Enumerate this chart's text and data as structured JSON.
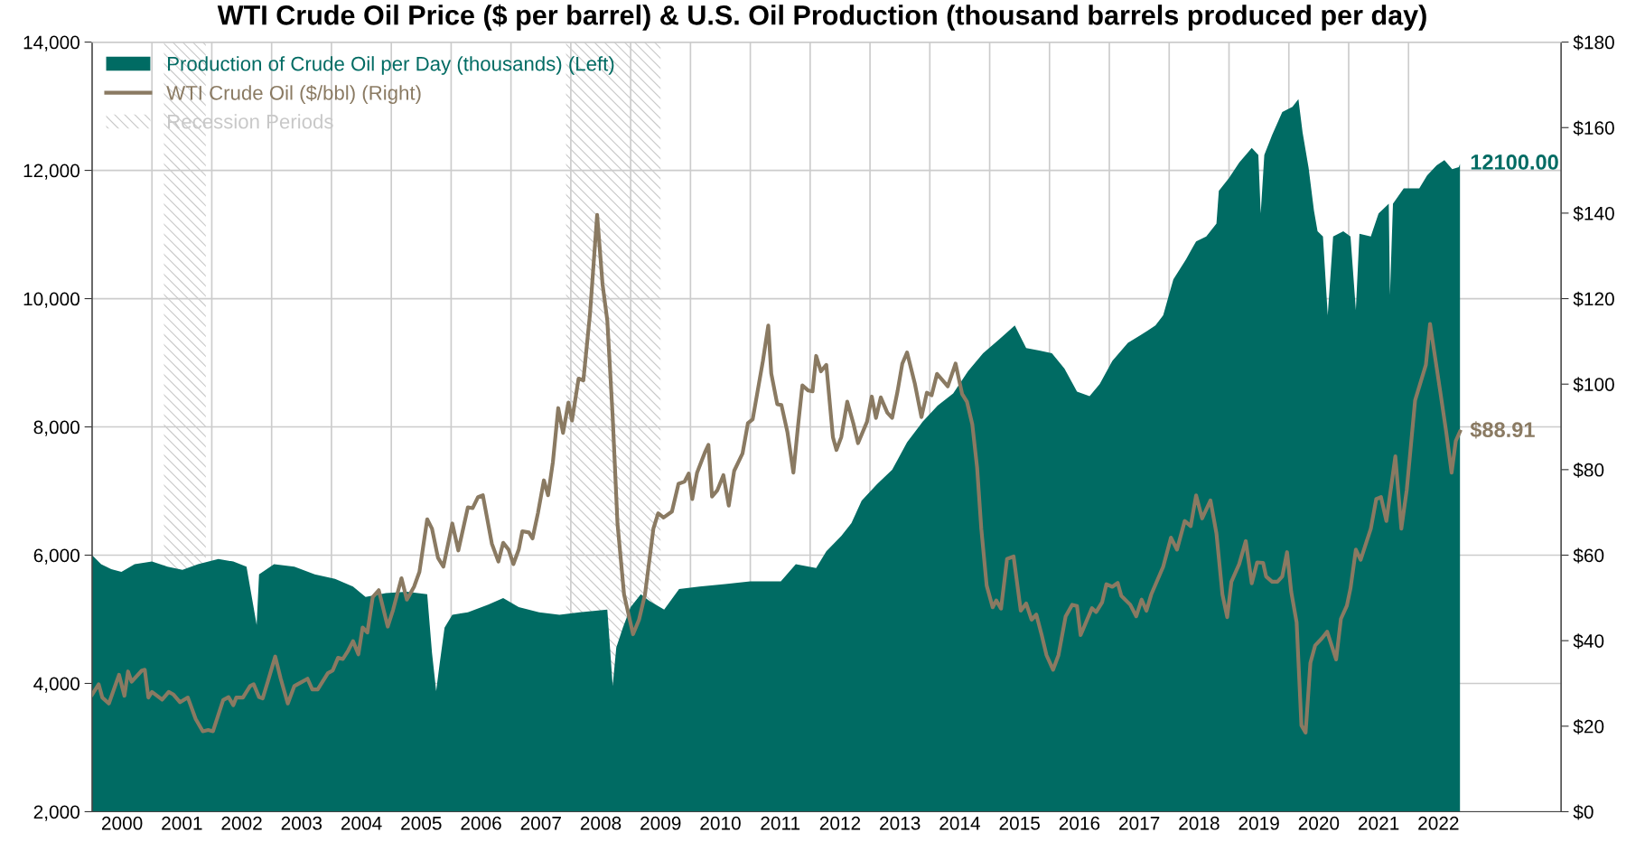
{
  "chart_data": {
    "type": "area",
    "title": "WTI Crude Oil Price ($ per barrel) & U.S. Oil Production (thousand barrels produced per day)",
    "xlim": [
      2000,
      2024.55
    ],
    "xticks": [
      {
        "value": 2000.5,
        "label": "2000"
      },
      {
        "value": 2001.5,
        "label": "2001"
      },
      {
        "value": 2002.5,
        "label": "2002"
      },
      {
        "value": 2003.5,
        "label": "2003"
      },
      {
        "value": 2004.5,
        "label": "2004"
      },
      {
        "value": 2005.5,
        "label": "2005"
      },
      {
        "value": 2006.5,
        "label": "2006"
      },
      {
        "value": 2007.5,
        "label": "2007"
      },
      {
        "value": 2008.5,
        "label": "2008"
      },
      {
        "value": 2009.5,
        "label": "2009"
      },
      {
        "value": 2010.5,
        "label": "2010"
      },
      {
        "value": 2011.5,
        "label": "2011"
      },
      {
        "value": 2012.5,
        "label": "2012"
      },
      {
        "value": 2013.5,
        "label": "2013"
      },
      {
        "value": 2014.5,
        "label": "2014"
      },
      {
        "value": 2015.5,
        "label": "2015"
      },
      {
        "value": 2016.5,
        "label": "2016"
      },
      {
        "value": 2017.5,
        "label": "2017"
      },
      {
        "value": 2018.5,
        "label": "2018"
      },
      {
        "value": 2019.5,
        "label": "2019"
      },
      {
        "value": 2020.5,
        "label": "2020"
      },
      {
        "value": 2021.5,
        "label": "2021"
      },
      {
        "value": 2022.5,
        "label": "2022"
      },
      {
        "value": 2001,
        "label": null
      },
      {
        "value": 2002,
        "label": null
      },
      {
        "value": 2003,
        "label": null
      },
      {
        "value": 2004,
        "label": null
      },
      {
        "value": 2005,
        "label": null
      },
      {
        "value": 2006,
        "label": null
      },
      {
        "value": 2007,
        "label": null
      },
      {
        "value": 2008,
        "label": null
      },
      {
        "value": 2009,
        "label": null
      },
      {
        "value": 2010,
        "label": null
      },
      {
        "value": 2011,
        "label": null
      },
      {
        "value": 2012,
        "label": null
      },
      {
        "value": 2013,
        "label": null
      },
      {
        "value": 2014,
        "label": null
      },
      {
        "value": 2015,
        "label": null
      },
      {
        "value": 2016,
        "label": null
      },
      {
        "value": 2017,
        "label": null
      },
      {
        "value": 2018,
        "label": null
      },
      {
        "value": 2019,
        "label": null
      },
      {
        "value": 2020,
        "label": null
      },
      {
        "value": 2021,
        "label": null
      },
      {
        "value": 2022,
        "label": null
      }
    ],
    "ylim": [
      2000,
      14000
    ],
    "yticks": [
      {
        "value": 2000,
        "label": "2,000"
      },
      {
        "value": 4000,
        "label": "4,000"
      },
      {
        "value": 6000,
        "label": "6,000"
      },
      {
        "value": 8000,
        "label": "8,000"
      },
      {
        "value": 10000,
        "label": "10,000"
      },
      {
        "value": 12000,
        "label": "12,000"
      },
      {
        "value": 14000,
        "label": "14,000"
      }
    ],
    "y2lim": [
      0,
      180
    ],
    "y2ticks": [
      {
        "value": 0,
        "label": "$0"
      },
      {
        "value": 20,
        "label": "$20"
      },
      {
        "value": 40,
        "label": "$40"
      },
      {
        "value": 60,
        "label": "$60"
      },
      {
        "value": 80,
        "label": "$80"
      },
      {
        "value": 100,
        "label": "$100"
      },
      {
        "value": 120,
        "label": "$120"
      },
      {
        "value": 140,
        "label": "$140"
      },
      {
        "value": 160,
        "label": "$160"
      },
      {
        "value": 180,
        "label": "$180"
      }
    ],
    "grid": true,
    "legend": "top left",
    "bands": [
      {
        "axis": "x",
        "from": 2001.2,
        "to": 2001.9,
        "label": "Recession Periods",
        "color": "#c8c8c8"
      },
      {
        "axis": "x",
        "from": 2007.92,
        "to": 2009.5,
        "color": "#c8c8c8"
      }
    ],
    "series": [
      {
        "name": "Production of Crude Oil per Day (thousands) (Left)",
        "color": "#006b63",
        "x": [
          2000.0,
          2000.15,
          2000.32,
          2000.49,
          2000.71,
          2001.0,
          2001.26,
          2001.51,
          2001.77,
          2002.11,
          2002.36,
          2002.58,
          2002.75,
          2002.79,
          2003.04,
          2003.38,
          2003.72,
          2004.06,
          2004.36,
          2004.57,
          2004.91,
          2005.26,
          2005.6,
          2005.68,
          2005.75,
          2005.81,
          2005.89,
          2006.02,
          2006.28,
          2006.62,
          2006.87,
          2007.13,
          2007.47,
          2007.81,
          2008.15,
          2008.61,
          2008.7,
          2008.76,
          2008.87,
          2009.0,
          2009.17,
          2009.31,
          2009.56,
          2009.81,
          2010.15,
          2010.58,
          2011.0,
          2011.51,
          2011.76,
          2012.1,
          2012.27,
          2012.52,
          2012.69,
          2012.86,
          2013.12,
          2013.37,
          2013.62,
          2013.88,
          2014.13,
          2014.39,
          2014.64,
          2014.89,
          2015.14,
          2015.42,
          2015.61,
          2015.83,
          2016.04,
          2016.25,
          2016.46,
          2016.67,
          2016.84,
          2017.05,
          2017.31,
          2017.52,
          2017.77,
          2017.9,
          2018.07,
          2018.28,
          2018.4,
          2018.45,
          2018.62,
          2018.79,
          2018.83,
          2019.0,
          2019.17,
          2019.38,
          2019.49,
          2019.53,
          2019.59,
          2019.72,
          2019.89,
          2020.06,
          2020.16,
          2020.23,
          2020.33,
          2020.42,
          2020.48,
          2020.57,
          2020.65,
          2020.74,
          2020.91,
          2021.03,
          2021.12,
          2021.18,
          2021.37,
          2021.5,
          2021.67,
          2021.69,
          2021.74,
          2021.92,
          2022.18,
          2022.31,
          2022.47,
          2022.6,
          2022.73,
          2022.84,
          2022.86
        ],
        "values": [
          6000,
          5860,
          5780,
          5740,
          5860,
          5900,
          5820,
          5770,
          5860,
          5940,
          5900,
          5820,
          4910,
          5700,
          5860,
          5820,
          5700,
          5630,
          5510,
          5350,
          5410,
          5430,
          5390,
          4480,
          3880,
          4320,
          4870,
          5070,
          5110,
          5230,
          5330,
          5190,
          5110,
          5070,
          5110,
          5150,
          3960,
          4560,
          4870,
          5190,
          5390,
          5290,
          5150,
          5470,
          5510,
          5550,
          5590,
          5590,
          5860,
          5800,
          6060,
          6300,
          6500,
          6850,
          7110,
          7330,
          7760,
          8080,
          8330,
          8520,
          8870,
          9150,
          9350,
          9580,
          9230,
          9190,
          9150,
          8910,
          8550,
          8480,
          8670,
          9030,
          9310,
          9430,
          9580,
          9740,
          10300,
          10610,
          10810,
          10890,
          10970,
          11170,
          11680,
          11880,
          12120,
          12350,
          12240,
          11330,
          12240,
          12550,
          12910,
          12990,
          13110,
          12590,
          12040,
          11370,
          11050,
          10970,
          9740,
          10970,
          11050,
          10970,
          9820,
          11010,
          10970,
          11330,
          11480,
          10060,
          11480,
          11720,
          11720,
          11920,
          12080,
          12160,
          12020,
          12050,
          12100
        ],
        "value_labels": [
          null,
          null,
          null,
          null,
          null,
          null,
          null,
          null,
          null,
          null,
          null,
          null,
          null,
          null,
          null,
          null,
          null,
          null,
          null,
          null,
          null,
          null,
          null,
          null,
          null,
          null,
          null,
          null,
          null,
          null,
          null,
          null,
          null,
          null,
          null,
          null,
          null,
          null,
          null,
          null,
          null,
          null,
          null,
          null,
          null,
          null,
          null,
          null,
          null,
          null,
          null,
          null,
          null,
          null,
          null,
          null,
          null,
          null,
          null,
          null,
          null,
          null,
          null,
          null,
          null,
          null,
          null,
          null,
          null,
          null,
          null,
          null,
          null,
          null,
          null,
          null,
          null,
          null,
          null,
          null,
          null,
          null,
          null,
          null,
          null,
          null,
          null,
          null,
          null,
          null,
          null,
          null,
          null,
          null,
          null,
          null,
          null,
          null,
          null,
          null,
          null,
          null,
          null,
          null,
          null,
          null,
          null,
          null,
          null,
          null,
          null,
          null,
          null,
          null,
          null,
          null,
          "12100.00"
        ]
      },
      {
        "name": "WTI Crude Oil ($/bbl) (Right)",
        "type": "line",
        "axis": "y2",
        "color": "#8a7a62",
        "line_style": "solid",
        "x": [
          2000.0,
          2000.11,
          2000.17,
          2000.28,
          2000.45,
          2000.54,
          2000.6,
          2000.66,
          2000.83,
          2000.88,
          2000.94,
          2001.0,
          2001.17,
          2001.28,
          2001.36,
          2001.47,
          2001.6,
          2001.73,
          2001.85,
          2001.94,
          2002.02,
          2002.19,
          2002.28,
          2002.36,
          2002.41,
          2002.52,
          2002.64,
          2002.7,
          2002.79,
          2002.85,
          2002.94,
          2003.06,
          2003.15,
          2003.27,
          2003.38,
          2003.51,
          2003.6,
          2003.68,
          2003.77,
          2003.94,
          2004.02,
          2004.11,
          2004.19,
          2004.28,
          2004.36,
          2004.45,
          2004.52,
          2004.6,
          2004.69,
          2004.79,
          2004.94,
          2005.03,
          2005.17,
          2005.26,
          2005.38,
          2005.47,
          2005.6,
          2005.68,
          2005.78,
          2005.87,
          2006.02,
          2006.12,
          2006.28,
          2006.36,
          2006.45,
          2006.53,
          2006.68,
          2006.79,
          2006.87,
          2006.96,
          2007.04,
          2007.13,
          2007.19,
          2007.3,
          2007.36,
          2007.45,
          2007.55,
          2007.62,
          2007.7,
          2007.79,
          2007.87,
          2007.96,
          2008.02,
          2008.13,
          2008.21,
          2008.32,
          2008.44,
          2008.53,
          2008.61,
          2008.7,
          2008.78,
          2008.89,
          2009.04,
          2009.14,
          2009.24,
          2009.38,
          2009.46,
          2009.55,
          2009.69,
          2009.8,
          2009.9,
          2009.97,
          2010.03,
          2010.11,
          2010.24,
          2010.3,
          2010.36,
          2010.45,
          2010.55,
          2010.64,
          2010.73,
          2010.87,
          2010.96,
          2011.04,
          2011.21,
          2011.3,
          2011.35,
          2011.45,
          2011.52,
          2011.62,
          2011.72,
          2011.8,
          2011.87,
          2011.97,
          2012.04,
          2012.1,
          2012.18,
          2012.27,
          2012.38,
          2012.44,
          2012.52,
          2012.62,
          2012.72,
          2012.8,
          2012.95,
          2013.03,
          2013.1,
          2013.18,
          2013.29,
          2013.37,
          2013.46,
          2013.54,
          2013.62,
          2013.75,
          2013.86,
          2013.95,
          2014.03,
          2014.12,
          2014.17,
          2014.3,
          2014.43,
          2014.54,
          2014.62,
          2014.71,
          2014.79,
          2014.86,
          2014.95,
          2015.05,
          2015.11,
          2015.19,
          2015.29,
          2015.4,
          2015.52,
          2015.61,
          2015.7,
          2015.78,
          2015.87,
          2015.95,
          2016.06,
          2016.15,
          2016.27,
          2016.38,
          2016.46,
          2016.52,
          2016.71,
          2016.78,
          2016.88,
          2016.95,
          2017.05,
          2017.14,
          2017.2,
          2017.35,
          2017.45,
          2017.54,
          2017.62,
          2017.7,
          2017.9,
          2018.03,
          2018.13,
          2018.26,
          2018.36,
          2018.45,
          2018.55,
          2018.69,
          2018.79,
          2018.89,
          2018.97,
          2019.04,
          2019.17,
          2019.28,
          2019.38,
          2019.47,
          2019.57,
          2019.62,
          2019.72,
          2019.81,
          2019.89,
          2019.97,
          2020.04,
          2020.13,
          2020.21,
          2020.28,
          2020.36,
          2020.44,
          2020.55,
          2020.64,
          2020.79,
          2020.87,
          2020.97,
          2021.03,
          2021.12,
          2021.2,
          2021.37,
          2021.46,
          2021.54,
          2021.63,
          2021.78,
          2021.88,
          2021.97,
          2022.11,
          2022.29,
          2022.36,
          2022.53,
          2022.63,
          2022.72,
          2022.79,
          2022.86
        ],
        "values": [
          27.4,
          29.8,
          26.7,
          25.3,
          32.0,
          27.1,
          32.8,
          30.4,
          33.0,
          33.2,
          26.7,
          28.0,
          26.2,
          28.0,
          27.4,
          25.6,
          26.7,
          21.7,
          18.8,
          19.1,
          18.8,
          26.1,
          26.8,
          24.9,
          26.7,
          26.7,
          29.4,
          29.8,
          26.8,
          26.5,
          30.6,
          36.3,
          31.2,
          25.3,
          29.4,
          30.4,
          31.1,
          28.6,
          28.6,
          32.4,
          33.0,
          36.0,
          35.7,
          37.7,
          39.9,
          36.8,
          43.1,
          41.9,
          50.2,
          51.8,
          43.3,
          47.2,
          54.6,
          49.6,
          52.6,
          56.1,
          68.4,
          66.2,
          59.4,
          57.3,
          67.4,
          61.1,
          71.2,
          71.0,
          73.6,
          74.0,
          62.7,
          58.5,
          62.9,
          61.3,
          57.9,
          61.3,
          65.6,
          65.3,
          63.9,
          69.8,
          77.5,
          74.0,
          81.7,
          94.4,
          88.6,
          95.7,
          91.5,
          101.3,
          100.9,
          116.3,
          139.6,
          123.4,
          114.9,
          92.3,
          67.4,
          50.8,
          41.5,
          44.9,
          50.8,
          66.2,
          69.8,
          68.8,
          70.2,
          76.7,
          77.2,
          79.1,
          73.1,
          79.3,
          84.0,
          85.8,
          73.7,
          75.2,
          78.7,
          71.6,
          79.7,
          83.8,
          90.9,
          91.8,
          105.4,
          113.7,
          102.5,
          95.3,
          95.1,
          88.8,
          79.3,
          90.6,
          99.7,
          98.5,
          98.3,
          106.6,
          103.0,
          104.5,
          87.6,
          84.6,
          87.6,
          95.9,
          90.9,
          86.2,
          91.2,
          97.1,
          92.1,
          96.9,
          93.3,
          92.1,
          98.3,
          104.8,
          107.4,
          100.1,
          92.3,
          98.0,
          97.4,
          102.4,
          101.6,
          99.5,
          104.8,
          97.7,
          95.9,
          90.6,
          80.5,
          66.2,
          52.9,
          47.8,
          49.4,
          47.5,
          59.1,
          59.7,
          47.0,
          48.7,
          44.9,
          46.1,
          41.3,
          36.6,
          33.2,
          36.6,
          45.7,
          48.4,
          48.1,
          41.3,
          47.6,
          46.7,
          49.0,
          53.2,
          52.6,
          53.5,
          50.5,
          48.4,
          45.7,
          49.6,
          47.0,
          50.8,
          57.3,
          64.1,
          61.3,
          68.0,
          66.8,
          74.0,
          68.6,
          72.8,
          65.1,
          50.8,
          45.5,
          53.8,
          57.9,
          63.3,
          53.4,
          58.3,
          58.2,
          55.0,
          53.8,
          53.8,
          55.0,
          60.7,
          51.4,
          44.3,
          20.2,
          18.5,
          34.8,
          38.9,
          40.5,
          42.1,
          35.6,
          45.1,
          48.2,
          52.2,
          61.3,
          58.9,
          66.2,
          73.1,
          73.6,
          68.0,
          83.1,
          66.2,
          75.2,
          96.2,
          104.5,
          114.1,
          98.3,
          88.8,
          79.3,
          86.7,
          88.91
        ],
        "value_labels": [
          null,
          null,
          null,
          null,
          null,
          null,
          null,
          null,
          null,
          null,
          null,
          null,
          null,
          null,
          null,
          null,
          null,
          null,
          null,
          null,
          null,
          null,
          null,
          null,
          null,
          null,
          null,
          null,
          null,
          null,
          null,
          null,
          null,
          null,
          null,
          null,
          null,
          null,
          null,
          null,
          null,
          null,
          null,
          null,
          null,
          null,
          null,
          null,
          null,
          null,
          null,
          null,
          null,
          null,
          null,
          null,
          null,
          null,
          null,
          null,
          null,
          null,
          null,
          null,
          null,
          null,
          null,
          null,
          null,
          null,
          null,
          null,
          null,
          null,
          null,
          null,
          null,
          null,
          null,
          null,
          null,
          null,
          null,
          null,
          null,
          null,
          null,
          null,
          null,
          null,
          null,
          null,
          null,
          null,
          null,
          null,
          null,
          null,
          null,
          null,
          null,
          null,
          null,
          null,
          null,
          null,
          null,
          null,
          null,
          null,
          null,
          null,
          null,
          null,
          null,
          null,
          null,
          null,
          null,
          null,
          null,
          null,
          null,
          null,
          null,
          null,
          null,
          null,
          null,
          null,
          null,
          null,
          null,
          null,
          null,
          null,
          null,
          null,
          null,
          null,
          null,
          null,
          null,
          null,
          null,
          null,
          null,
          null,
          null,
          null,
          null,
          null,
          null,
          null,
          null,
          null,
          null,
          null,
          null,
          null,
          null,
          null,
          null,
          null,
          null,
          null,
          null,
          null,
          null,
          null,
          null,
          null,
          null,
          null,
          null,
          null,
          null,
          null,
          null,
          null,
          null,
          null,
          null,
          null,
          null,
          null,
          null,
          null,
          null,
          null,
          null,
          null,
          null,
          null,
          null,
          null,
          null,
          null,
          null,
          null,
          null,
          null,
          null,
          null,
          null,
          null,
          null,
          null,
          null,
          null,
          null,
          null,
          null,
          null,
          null,
          null,
          null,
          null,
          null,
          null,
          null,
          null,
          null,
          null,
          null,
          null,
          null,
          null,
          null,
          null,
          null,
          null,
          null,
          null,
          null,
          null,
          "$88.91"
        ]
      }
    ]
  }
}
